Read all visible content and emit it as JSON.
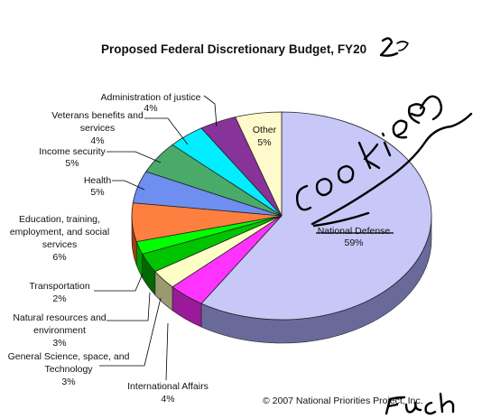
{
  "chart_data": {
    "type": "pie",
    "title": "Proposed Federal Discretionary Budget, FY2008",
    "slices": [
      {
        "label": "National Defense",
        "value": 59,
        "color": "#c7c8f8",
        "side": "#6a6a9a"
      },
      {
        "label": "International Affairs",
        "value": 4,
        "color": "#ff33ff",
        "side": "#9a1a9a"
      },
      {
        "label": "General Science, space, and Technology",
        "value": 3,
        "color": "#fdfdc6",
        "side": "#9a9a70"
      },
      {
        "label": "Natural resources and environment",
        "value": 3,
        "color": "#00c400",
        "side": "#006a00"
      },
      {
        "label": "Transportation",
        "value": 2,
        "color": "#00ff00",
        "side": "#009a00"
      },
      {
        "label": "Education, training, employment, and social services",
        "value": 6,
        "color": "#ff7f40",
        "side": "#a04010"
      },
      {
        "label": "Health",
        "value": 5,
        "color": "#6e8ef0",
        "side": "#3a4a90"
      },
      {
        "label": "Income security",
        "value": 5,
        "color": "#4aaa6a",
        "side": "#2a6a3a"
      },
      {
        "label": "Veterans benefits and services",
        "value": 4,
        "color": "#00eeff",
        "side": "#008a9a"
      },
      {
        "label": "Administration of justice",
        "value": 4,
        "color": "#883399",
        "side": "#4a1a55"
      },
      {
        "label": "Other",
        "value": 5,
        "color": "#fffacc",
        "side": "#a09a70"
      }
    ],
    "labels": {
      "defense": [
        "National Defense",
        "59%"
      ],
      "international": [
        "International Affairs",
        "4%"
      ],
      "science": [
        "General Science, space, and",
        "Technology",
        "3%"
      ],
      "natural": [
        "Natural resources and",
        "environment",
        "3%"
      ],
      "transport": [
        "Transportation",
        "2%"
      ],
      "education": [
        "Education, training,",
        "employment, and social",
        "services",
        "6%"
      ],
      "health": [
        "Health",
        "5%"
      ],
      "income": [
        "Income security",
        "5%"
      ],
      "veterans": [
        "Veterans benefits and",
        "services",
        "4%"
      ],
      "justice": [
        "Administration of justice",
        "4%"
      ],
      "other": [
        "Other",
        "5%"
      ]
    }
  },
  "title_text": "Proposed Federal Discretionary Budget, FY20",
  "footer": {
    "copyright": "© 2007 National Priorities Project, Inc."
  },
  "colors": {
    "leader_line": "#000000"
  }
}
